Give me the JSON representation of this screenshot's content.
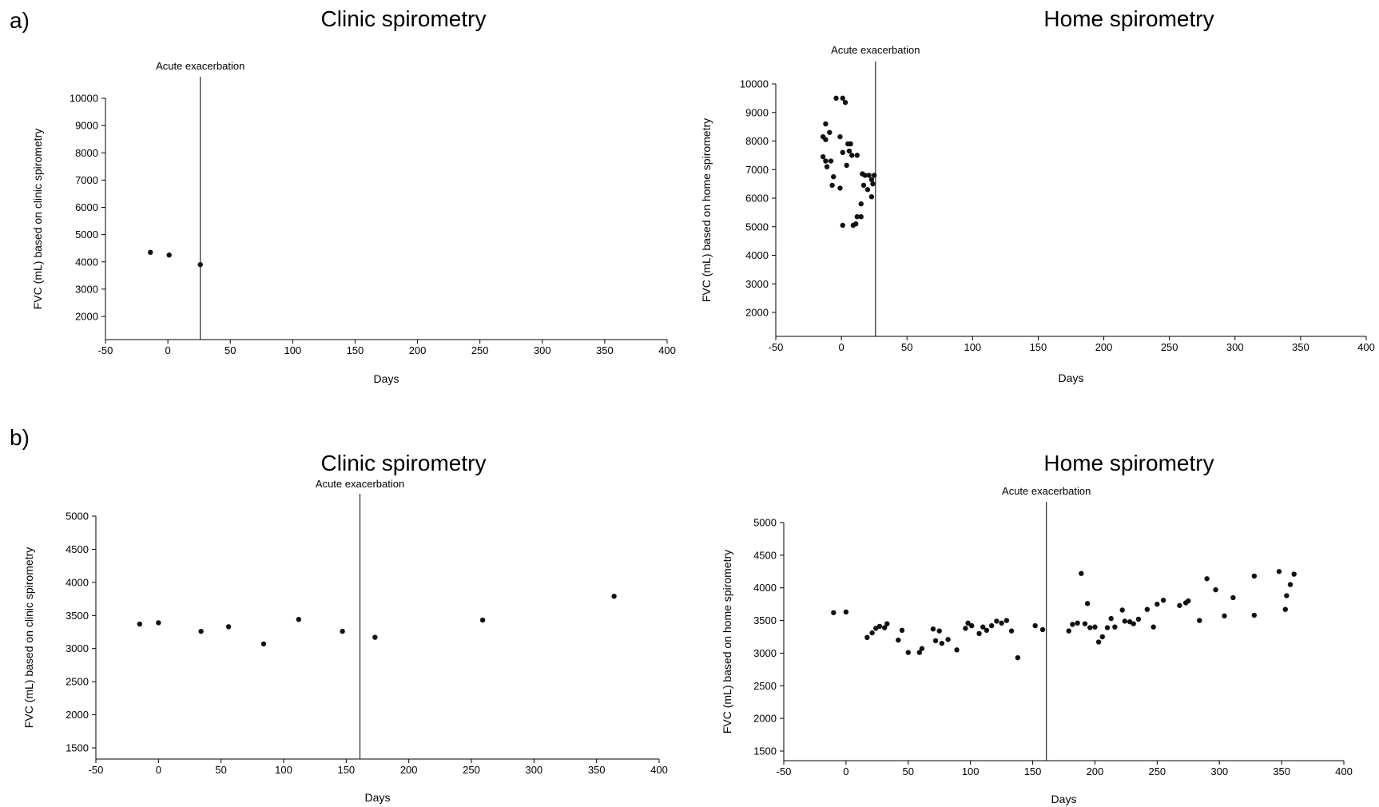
{
  "panels": [
    {
      "label": "a)"
    },
    {
      "label": "b)"
    }
  ],
  "chart_data": [
    {
      "type": "scatter",
      "panel": "a)",
      "title": "Clinic spirometry",
      "xlabel": "Days",
      "ylabel": "FVC (mL) based on clinic spirometry",
      "xlim": [
        -50,
        400
      ],
      "ylim": [
        2000,
        10000
      ],
      "x_ticks": [
        -50,
        0,
        50,
        100,
        150,
        200,
        250,
        300,
        350,
        400
      ],
      "y_ticks": [
        2000,
        3000,
        4000,
        5000,
        6000,
        7000,
        8000,
        9000,
        10000
      ],
      "vline": {
        "x": 26,
        "label": "Acute exacerbation"
      },
      "grid": false,
      "points": [
        [
          -14,
          4350
        ],
        [
          1,
          4250
        ],
        [
          26,
          3900
        ]
      ]
    },
    {
      "type": "scatter",
      "panel": "a)",
      "title": "Home spirometry",
      "xlabel": "Days",
      "ylabel": "FVC (mL) based on home spirometry",
      "xlim": [
        -50,
        400
      ],
      "ylim": [
        2000,
        10000
      ],
      "x_ticks": [
        -50,
        0,
        50,
        100,
        150,
        200,
        250,
        300,
        350,
        400
      ],
      "y_ticks": [
        2000,
        3000,
        4000,
        5000,
        6000,
        7000,
        8000,
        9000,
        10000
      ],
      "vline": {
        "x": 26,
        "label": "Acute exacerbation"
      },
      "grid": false,
      "points": [
        [
          -4,
          9500
        ],
        [
          1,
          9500
        ],
        [
          3,
          9350
        ],
        [
          -12,
          8600
        ],
        [
          -9,
          8300
        ],
        [
          -14,
          8150
        ],
        [
          -12,
          8050
        ],
        [
          -1,
          8150
        ],
        [
          5,
          7900
        ],
        [
          7,
          7900
        ],
        [
          12,
          7500
        ],
        [
          1,
          7600
        ],
        [
          6,
          7650
        ],
        [
          8,
          7500
        ],
        [
          -14,
          7450
        ],
        [
          -12,
          7300
        ],
        [
          -8,
          7300
        ],
        [
          -11,
          7100
        ],
        [
          4,
          7150
        ],
        [
          -6,
          6750
        ],
        [
          -7,
          6450
        ],
        [
          -1,
          6350
        ],
        [
          16,
          6850
        ],
        [
          18,
          6800
        ],
        [
          21,
          6800
        ],
        [
          23,
          6650
        ],
        [
          25,
          6800
        ],
        [
          24,
          6500
        ],
        [
          17,
          6450
        ],
        [
          20,
          6300
        ],
        [
          23,
          6050
        ],
        [
          15,
          5800
        ],
        [
          12,
          5350
        ],
        [
          15,
          5350
        ],
        [
          1,
          5050
        ],
        [
          9,
          5050
        ],
        [
          11,
          5100
        ]
      ]
    },
    {
      "type": "scatter",
      "panel": "b)",
      "title": "Clinic spirometry",
      "xlabel": "Days",
      "ylabel": "FVC (mL) based on clinic spirometry",
      "xlim": [
        -50,
        400
      ],
      "ylim": [
        1500,
        5000
      ],
      "x_ticks": [
        -50,
        0,
        50,
        100,
        150,
        200,
        250,
        300,
        350,
        400
      ],
      "y_ticks": [
        1500,
        2000,
        2500,
        3000,
        3500,
        4000,
        4500,
        5000
      ],
      "vline": {
        "x": 161,
        "label": "Acute exacerbation"
      },
      "grid": false,
      "points": [
        [
          -15,
          3370
        ],
        [
          0,
          3390
        ],
        [
          34,
          3260
        ],
        [
          56,
          3330
        ],
        [
          84,
          3070
        ],
        [
          112,
          3440
        ],
        [
          147,
          3260
        ],
        [
          173,
          3170
        ],
        [
          259,
          3430
        ],
        [
          364,
          3790
        ]
      ]
    },
    {
      "type": "scatter",
      "panel": "b)",
      "title": "Home spirometry",
      "xlabel": "Days",
      "ylabel": "FVC (mL) based on home spirometry",
      "xlim": [
        -50,
        400
      ],
      "ylim": [
        1500,
        5000
      ],
      "x_ticks": [
        -50,
        0,
        50,
        100,
        150,
        200,
        250,
        300,
        350,
        400
      ],
      "y_ticks": [
        1500,
        2000,
        2500,
        3000,
        3500,
        4000,
        4500,
        5000
      ],
      "vline": {
        "x": 161,
        "label": "Acute exacerbation"
      },
      "grid": false,
      "points": [
        [
          -10,
          3620
        ],
        [
          0,
          3630
        ],
        [
          17,
          3240
        ],
        [
          21,
          3310
        ],
        [
          24,
          3380
        ],
        [
          27,
          3410
        ],
        [
          31,
          3390
        ],
        [
          33,
          3450
        ],
        [
          42,
          3200
        ],
        [
          45,
          3350
        ],
        [
          50,
          3010
        ],
        [
          59,
          3010
        ],
        [
          61,
          3070
        ],
        [
          70,
          3370
        ],
        [
          72,
          3190
        ],
        [
          75,
          3340
        ],
        [
          77,
          3150
        ],
        [
          82,
          3210
        ],
        [
          89,
          3050
        ],
        [
          96,
          3380
        ],
        [
          98,
          3460
        ],
        [
          101,
          3420
        ],
        [
          107,
          3300
        ],
        [
          110,
          3400
        ],
        [
          113,
          3350
        ],
        [
          117,
          3420
        ],
        [
          121,
          3490
        ],
        [
          125,
          3460
        ],
        [
          129,
          3500
        ],
        [
          133,
          3340
        ],
        [
          138,
          2930
        ],
        [
          152,
          3420
        ],
        [
          158,
          3360
        ],
        [
          179,
          3340
        ],
        [
          182,
          3440
        ],
        [
          186,
          3460
        ],
        [
          189,
          4220
        ],
        [
          192,
          3450
        ],
        [
          194,
          3760
        ],
        [
          196,
          3390
        ],
        [
          200,
          3400
        ],
        [
          203,
          3170
        ],
        [
          206,
          3250
        ],
        [
          210,
          3390
        ],
        [
          213,
          3530
        ],
        [
          216,
          3400
        ],
        [
          222,
          3660
        ],
        [
          224,
          3490
        ],
        [
          228,
          3480
        ],
        [
          231,
          3450
        ],
        [
          235,
          3520
        ],
        [
          242,
          3670
        ],
        [
          247,
          3400
        ],
        [
          250,
          3750
        ],
        [
          255,
          3810
        ],
        [
          268,
          3730
        ],
        [
          273,
          3770
        ],
        [
          275,
          3800
        ],
        [
          284,
          3500
        ],
        [
          290,
          4140
        ],
        [
          297,
          3970
        ],
        [
          304,
          3570
        ],
        [
          311,
          3850
        ],
        [
          328,
          4180
        ],
        [
          328,
          3580
        ],
        [
          348,
          4250
        ],
        [
          353,
          3670
        ],
        [
          354,
          3880
        ],
        [
          357,
          4050
        ],
        [
          360,
          4210
        ]
      ]
    }
  ]
}
